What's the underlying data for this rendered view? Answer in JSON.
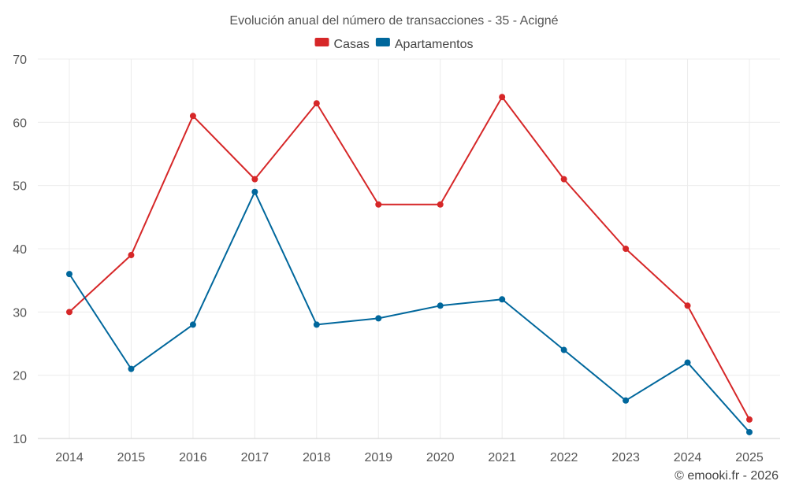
{
  "chart_data": {
    "type": "line",
    "title": "Evolución anual del número de transacciones - 35 - Acigné",
    "categories": [
      "2014",
      "2015",
      "2016",
      "2017",
      "2018",
      "2019",
      "2020",
      "2021",
      "2022",
      "2023",
      "2024",
      "2025"
    ],
    "series": [
      {
        "name": "Casas",
        "color": "#d62728",
        "values": [
          30,
          39,
          61,
          51,
          63,
          47,
          47,
          64,
          51,
          40,
          31,
          13
        ]
      },
      {
        "name": "Apartamentos",
        "color": "#00679c",
        "values": [
          36,
          21,
          28,
          49,
          28,
          29,
          31,
          32,
          24,
          16,
          22,
          11
        ]
      }
    ],
    "ylim": [
      10,
      70
    ],
    "yticks": [
      10,
      20,
      30,
      40,
      50,
      60,
      70
    ],
    "xlabel": "",
    "ylabel": "",
    "grid": true,
    "legend_position": "top-center"
  },
  "credit": "© emooki.fr - 2026"
}
